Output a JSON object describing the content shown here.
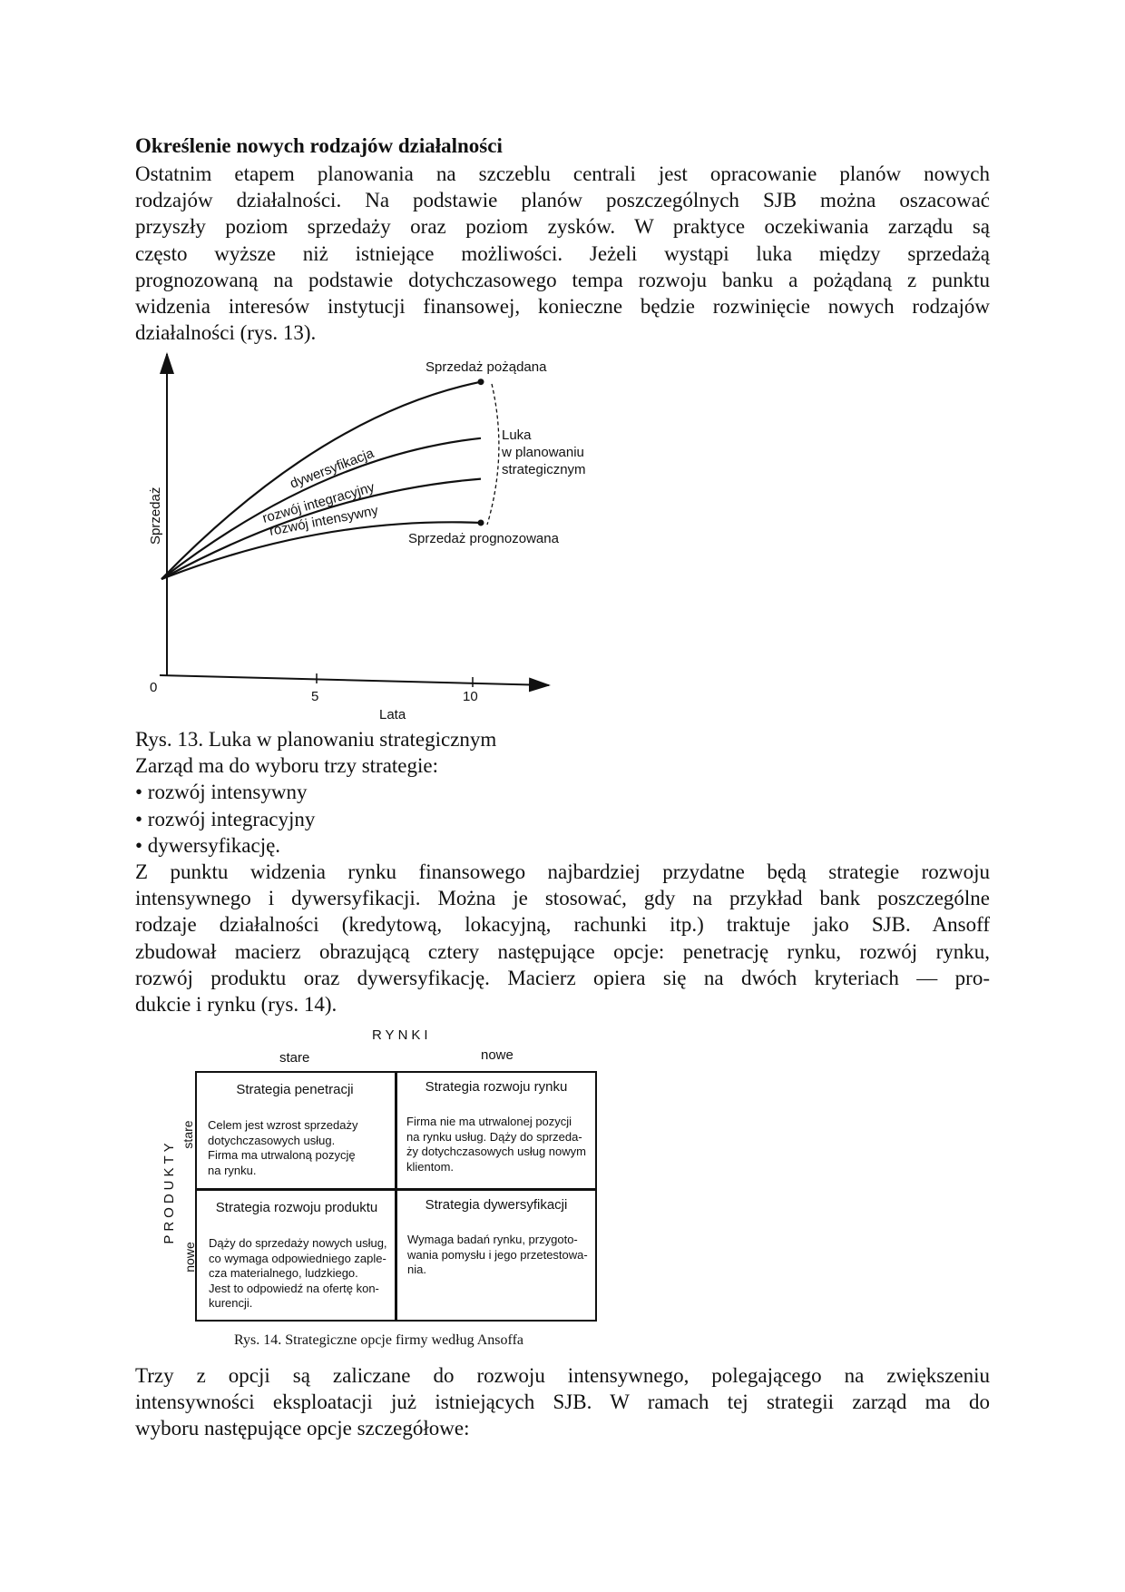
{
  "section_heading": "Określenie nowych rodzajów działalności",
  "paragraph_1": [
    "Ostatnim etapem planowania na szczeblu centrali jest opracowanie planów nowych",
    "rodzajów działalności. Na podstawie planów poszczególnych SJB można oszacować",
    "przyszły poziom sprzedaży oraz poziom zysków. W praktyce oczekiwania zarządu są",
    "często wyższe niż istniejące możliwości. Jeżeli wystąpi luka między sprzedażą",
    "prognozowaną na podstawie dotychczasowego tempa rozwoju banku a pożądaną z punktu",
    "widzenia interesów instytucji finansowej, konieczne będzie rozwinięcie nowych rodzajów",
    "działalności (rys. 13)."
  ],
  "chart_data": {
    "type": "line",
    "title": "",
    "xlabel": "Lata",
    "ylabel": "Sprzedaż",
    "x_ticks": [
      "0",
      "5",
      "10"
    ],
    "xlim": [
      0,
      12
    ],
    "ylim": [
      0,
      10
    ],
    "grid": false,
    "series": [
      {
        "name": "Sprzedaż pożądana",
        "x": [
          0,
          5,
          10
        ],
        "y": [
          3.1,
          7.3,
          9.4
        ],
        "end_marker": true
      },
      {
        "name": "dywersyfikacja",
        "x": [
          0,
          5,
          10
        ],
        "y": [
          3.1,
          6.2,
          7.6
        ]
      },
      {
        "name": "rozwój integracyjny",
        "x": [
          0,
          5,
          10
        ],
        "y": [
          3.1,
          5.3,
          6.3
        ]
      },
      {
        "name": "rozwój intensywny",
        "x": [
          0,
          5,
          10
        ],
        "y": [
          3.1,
          4.55,
          4.9
        ],
        "end_marker": true
      }
    ],
    "annotations": {
      "desired": "Sprzedaż pożądana",
      "forecast": "Sprzedaż prognozowana",
      "gap": [
        "Luka",
        "w planowaniu",
        "strategicznym"
      ]
    }
  },
  "figure_13_caption": "Rys. 13. Luka w planowaniu strategicznym",
  "strategies_intro": "Zarząd ma do wyboru trzy strategie:",
  "strategies": [
    "• rozwój intensywny",
    "• rozwój integracyjny",
    "• dywersyfikację."
  ],
  "paragraph_2": [
    "Z punktu widzenia rynku finansowego najbardziej przydatne będą strategie rozwoju",
    "intensywnego i dywersyfikacji. Można je stosować, gdy na przykład bank poszczególne",
    "rodzaje działalności (kredytową, lokacyjną, rachunki itp.) traktuje jako SJB. Ansoff",
    "zbudował macierz obrazującą cztery następujące opcje: penetrację rynku, rozwój rynku,",
    "rozwój produktu oraz dywersyfikację. Macierz opiera się na dwóch kryteriach — pro-",
    "dukcie i rynku (rys. 14)."
  ],
  "matrix": {
    "columns_title": "RYNKI",
    "rows_title": "PRODUKTY",
    "col_labels": [
      "stare",
      "nowe"
    ],
    "row_labels": [
      "stare",
      "nowe"
    ],
    "cells": [
      {
        "title": "Strategia penetracji",
        "text": [
          "Celem jest wzrost sprzedaży",
          "dotychczasowych usług.",
          "Firma ma utrwaloną pozycję",
          "na rynku."
        ]
      },
      {
        "title": "Strategia rozwoju rynku",
        "text": [
          "Firma nie ma utrwalonej pozycji",
          "na rynku usług. Dąży do sprzeda-",
          "ży dotychczasowych usług nowym",
          "klientom."
        ]
      },
      {
        "title": "Strategia rozwoju produktu",
        "text": [
          "Dąży do sprzedaży nowych usług,",
          "co wymaga odpowiedniego zaple-",
          "cza materialnego, ludzkiego.",
          "Jest to odpowiedź na ofertę kon-",
          "kurencji."
        ]
      },
      {
        "title": "Strategia dywersyfikacji",
        "text": [
          "Wymaga badań rynku, przygoto-",
          "wania pomysłu i jego przetestowa-",
          "nia."
        ]
      }
    ],
    "caption": "Rys. 14. Strategiczne opcje firmy według Ansoffa"
  },
  "paragraph_3": [
    "Trzy z opcji są zaliczane do rozwoju intensywnego, polegającego na zwiększeniu",
    "intensywności eksploatacji już istniejących SJB. W ramach tej strategii zarząd ma do",
    "wyboru następujące opcje szczegółowe:"
  ]
}
